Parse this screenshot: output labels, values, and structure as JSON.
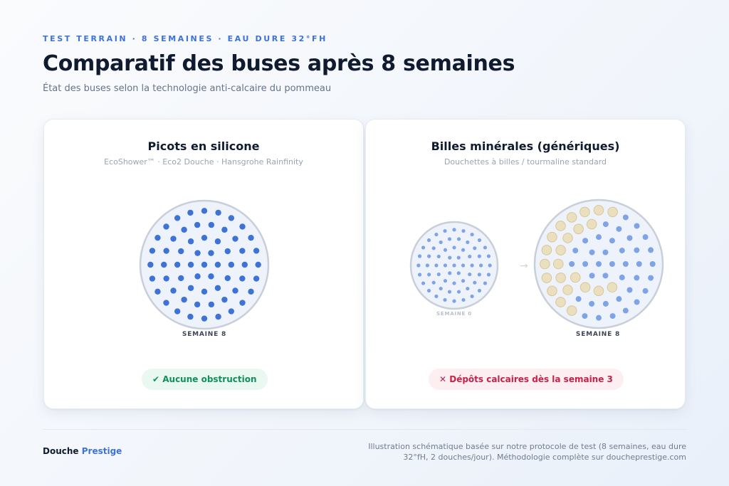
{
  "header": {
    "eyebrow": "TEST TERRAIN · 8 SEMAINES · EAU DURE 32°FH",
    "title": "Comparatif des buses après 8 semaines",
    "subtitle": "État des buses selon la technologie anti-calcaire du pommeau"
  },
  "cards": {
    "left": {
      "title": "Picots en silicone",
      "subtitle": "EcoShower™ · Eco2 Douche · Hansgrohe Rainfinity",
      "disc_label": "SEMAINE 8",
      "badge": "✔ Aucune obstruction"
    },
    "right": {
      "title": "Billes minérales (génériques)",
      "subtitle": "Douchettes à billes / tourmaline standard",
      "before_label": "SEMAINE 0",
      "after_label": "SEMAINE 8",
      "arrow": "→",
      "badge": "✕ Dépôts calcaires dès la semaine 3"
    }
  },
  "footer": {
    "brand_primary": "Douche",
    "brand_accent": "Prestige",
    "note": "Illustration schématique basée sur notre protocole de test (8 semaines, eau dure 32°fH, 2 douches/jour). Méthodologie complète sur doucheprestige.com"
  },
  "colors": {
    "accent": "#3d72d6",
    "nozzle_clean": "#3d72d6",
    "nozzle_faded": "#7ea3e6",
    "limescale": "#eadfbf",
    "ok": "#12905c",
    "bad": "#c4224a"
  }
}
